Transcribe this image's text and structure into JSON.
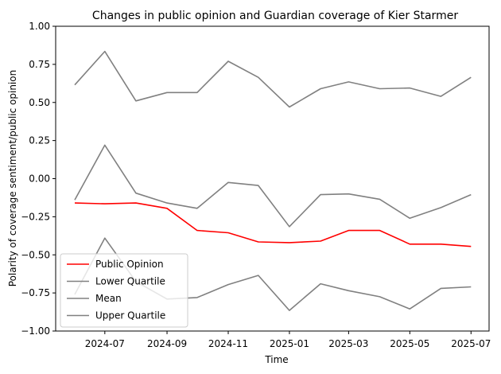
{
  "chart_data": {
    "type": "line",
    "title": "Changes in public opinion and Guardian coverage of Kier Starmer",
    "xlabel": "Time",
    "ylabel": "Polarity of coverage sentiment/public opinion",
    "ylim": [
      -1.0,
      1.0
    ],
    "xlim": [
      "2024-05-13",
      "2025-07-19"
    ],
    "yticks": [
      -1.0,
      -0.75,
      -0.5,
      -0.25,
      0.0,
      0.25,
      0.5,
      0.75,
      1.0
    ],
    "ytick_labels": [
      "−1.00",
      "−0.75",
      "−0.50",
      "−0.25",
      "0.00",
      "0.25",
      "0.50",
      "0.75",
      "1.00"
    ],
    "xticks": [
      "2024-07-01",
      "2024-09-01",
      "2024-11-01",
      "2025-01-01",
      "2025-03-01",
      "2025-05-01",
      "2025-07-01"
    ],
    "xtick_labels": [
      "2024-07",
      "2024-09",
      "2024-11",
      "2025-01",
      "2025-03",
      "2025-05",
      "2025-07"
    ],
    "x": [
      "2024-06-01",
      "2024-07-01",
      "2024-08-01",
      "2024-09-01",
      "2024-10-01",
      "2024-11-01",
      "2024-12-01",
      "2025-01-01",
      "2025-02-01",
      "2025-03-01",
      "2025-04-01",
      "2025-05-01",
      "2025-06-01",
      "2025-07-01"
    ],
    "legend_position": "lower-left",
    "series": [
      {
        "name": "Public Opinion",
        "color": "#ff0000",
        "values": [
          -0.16,
          -0.165,
          -0.16,
          -0.195,
          -0.34,
          -0.355,
          -0.415,
          -0.42,
          -0.41,
          -0.34,
          -0.34,
          -0.43,
          -0.43,
          -0.445
        ]
      },
      {
        "name": "Lower Quartile",
        "color": "#808080",
        "values": [
          -0.76,
          -0.39,
          -0.675,
          -0.79,
          -0.78,
          -0.695,
          -0.635,
          -0.865,
          -0.69,
          -0.735,
          -0.775,
          -0.855,
          -0.72,
          -0.71
        ]
      },
      {
        "name": "Mean",
        "color": "#808080",
        "values": [
          -0.14,
          0.22,
          -0.095,
          -0.16,
          -0.195,
          -0.025,
          -0.045,
          -0.315,
          -0.105,
          -0.1,
          -0.135,
          -0.26,
          -0.19,
          -0.105
        ]
      },
      {
        "name": "Upper Quartile",
        "color": "#808080",
        "values": [
          0.615,
          0.835,
          0.51,
          0.565,
          0.565,
          0.77,
          0.665,
          0.47,
          0.59,
          0.635,
          0.59,
          0.595,
          0.54,
          0.665
        ]
      }
    ]
  }
}
